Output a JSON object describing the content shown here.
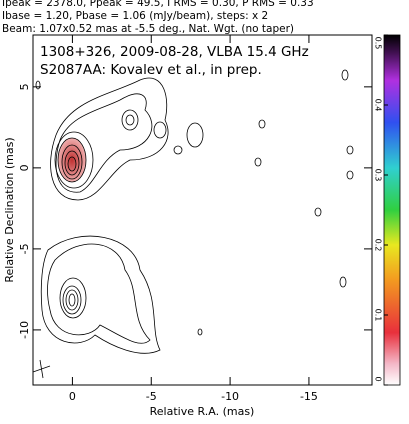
{
  "chart_data": {
    "type": "contour",
    "header": [
      "Ipeak = 2378.0, Ppeak = 49.5, I RMS = 0.30, P RMS = 0.33",
      "Ibase = 1.20, Pbase = 1.06 (mJy/beam), steps: x 2",
      "Beam: 1.07x0.52 mas at -5.5 deg., Nat. Wgt. (no taper)"
    ],
    "title": "1308+326, 2009-08-28, VLBA 15.4 GHz",
    "subtitle": "S2087AA: Kovalev et al., in prep.",
    "x_label": "Relative R.A. (mas)",
    "y_label": "Relative Declination (mas)",
    "xlim": [
      2.5,
      -19
    ],
    "xticks": [
      0,
      -5,
      -10,
      -15
    ],
    "ylim": [
      -13.4,
      8.2
    ],
    "yticks": [
      5,
      0,
      -5,
      -10
    ],
    "colorbar_lim": [
      0,
      0.5
    ],
    "colorbar_ticks": [
      0,
      0.1,
      0.2,
      0.3,
      0.4,
      0.5
    ]
  }
}
